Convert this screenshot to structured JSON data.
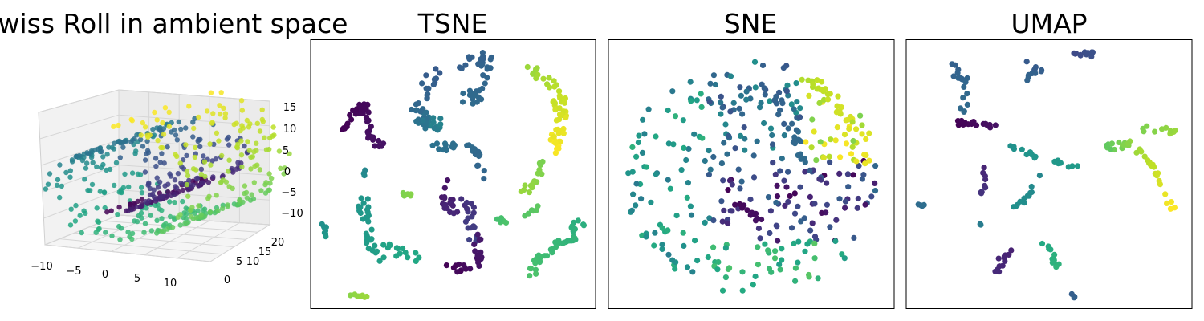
{
  "figure": {
    "background": "#ffffff",
    "colormap": "viridis"
  },
  "chart_data": [
    {
      "type": "scatter",
      "subtype": "3d",
      "title": "Swiss Roll in ambient space",
      "x_ticks": [
        "−10",
        "−5",
        "0",
        "5",
        "10"
      ],
      "y_ticks": [
        "0",
        "5",
        "10",
        "15",
        "20"
      ],
      "z_ticks": [
        "−10",
        "−5",
        "0",
        "5",
        "10",
        "15"
      ],
      "xlim": [
        -11,
        13
      ],
      "ylim": [
        0,
        21
      ],
      "zlim": [
        -12,
        15
      ],
      "grid": true,
      "color_by": "position along the roll"
    },
    {
      "type": "scatter",
      "title": "TSNE",
      "axes": "hidden ticks",
      "grid": false
    },
    {
      "type": "scatter",
      "title": "SNE",
      "axes": "hidden ticks",
      "grid": false
    },
    {
      "type": "scatter",
      "title": "UMAP",
      "axes": "hidden ticks",
      "grid": false
    }
  ]
}
